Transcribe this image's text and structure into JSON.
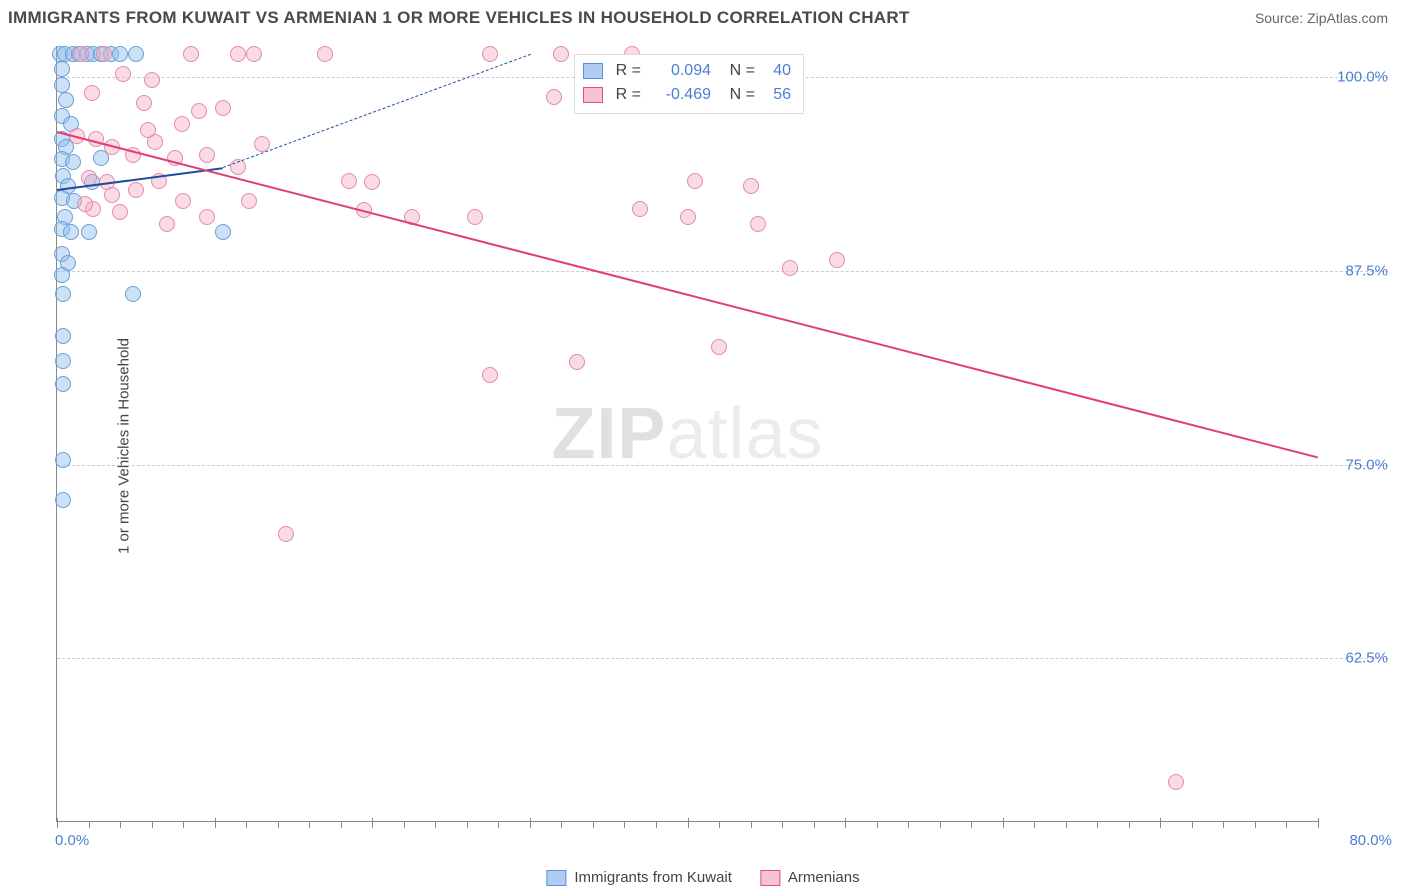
{
  "header": {
    "title": "IMMIGRANTS FROM KUWAIT VS ARMENIAN 1 OR MORE VEHICLES IN HOUSEHOLD CORRELATION CHART",
    "source": "Source: ZipAtlas.com"
  },
  "chart": {
    "type": "scatter",
    "ylabel": "1 or more Vehicles in Household",
    "watermark": {
      "left": "ZIP",
      "right": "atlas"
    },
    "background_color": "#ffffff",
    "grid_color": "#cccccc",
    "axis_color": "#888888",
    "tick_label_color": "#4a7fd4",
    "xlim": [
      0,
      80
    ],
    "ylim": [
      52,
      102
    ],
    "xticks_major": [
      0,
      10,
      20,
      30,
      40,
      50,
      60,
      70,
      80
    ],
    "xticks_minor_step": 2,
    "xlabel_min": "0.0%",
    "xlabel_max": "80.0%",
    "yticks": [
      {
        "v": 62.5,
        "label": "62.5%"
      },
      {
        "v": 75.0,
        "label": "75.0%"
      },
      {
        "v": 87.5,
        "label": "87.5%"
      },
      {
        "v": 100.0,
        "label": "100.0%"
      }
    ],
    "corr_box": {
      "pos_left_pct": 41,
      "pos_top_pct": 1,
      "rows": [
        {
          "fill": "#aecdf0",
          "stroke": "#5a92d4",
          "r": "0.094",
          "n": "40"
        },
        {
          "fill": "#f5c3d2",
          "stroke": "#e04f81",
          "r": "-0.469",
          "n": "56"
        }
      ],
      "rlabel": "R =",
      "nlabel": "N ="
    },
    "bottom_legend": [
      {
        "fill": "#aecdf0",
        "stroke": "#5a92d4",
        "label": "Immigrants from Kuwait"
      },
      {
        "fill": "#f5c3d2",
        "stroke": "#e04f81",
        "label": "Armenians"
      }
    ],
    "series": [
      {
        "name": "kuwait",
        "marker_fill": "rgba(142,189,234,0.45)",
        "marker_stroke": "#6aa0d8",
        "marker_size": 16,
        "trend": {
          "color": "#1d4f9c",
          "width": 2.5,
          "dash": "none",
          "x1": 0,
          "y1": 92.8,
          "x2": 10.5,
          "y2": 94.2
        },
        "trend_ext": {
          "color": "#1d4f9c",
          "width": 1.3,
          "dash": "6 5",
          "x1": 10.5,
          "y1": 94.2,
          "x2": 30,
          "y2": 101.5
        },
        "points": [
          [
            0.2,
            101.5
          ],
          [
            0.5,
            101.5
          ],
          [
            1.0,
            101.5
          ],
          [
            1.4,
            101.5
          ],
          [
            1.9,
            101.5
          ],
          [
            2.3,
            101.5
          ],
          [
            2.8,
            101.5
          ],
          [
            3.4,
            101.5
          ],
          [
            4.0,
            101.5
          ],
          [
            5.0,
            101.5
          ],
          [
            0.3,
            99.5
          ],
          [
            0.6,
            98.5
          ],
          [
            0.3,
            97.5
          ],
          [
            0.9,
            97.0
          ],
          [
            0.3,
            96.0
          ],
          [
            0.6,
            95.5
          ],
          [
            0.3,
            94.7
          ],
          [
            1.0,
            94.5
          ],
          [
            0.4,
            93.6
          ],
          [
            0.7,
            93.0
          ],
          [
            0.3,
            92.2
          ],
          [
            1.1,
            92.0
          ],
          [
            2.2,
            93.2
          ],
          [
            2.8,
            94.8
          ],
          [
            0.5,
            91.0
          ],
          [
            0.3,
            90.2
          ],
          [
            0.9,
            90.0
          ],
          [
            2.0,
            90.0
          ],
          [
            10.5,
            90.0
          ],
          [
            0.3,
            88.6
          ],
          [
            0.7,
            88.0
          ],
          [
            0.3,
            87.2
          ],
          [
            0.4,
            86.0
          ],
          [
            4.8,
            86.0
          ],
          [
            0.4,
            83.3
          ],
          [
            0.4,
            81.7
          ],
          [
            0.4,
            80.2
          ],
          [
            0.4,
            75.3
          ],
          [
            0.4,
            72.7
          ],
          [
            0.3,
            100.5
          ]
        ]
      },
      {
        "name": "armenian",
        "marker_fill": "rgba(243,172,196,0.45)",
        "marker_stroke": "#e58bad",
        "marker_size": 16,
        "trend": {
          "color": "#e23d78",
          "width": 2.5,
          "dash": "none",
          "x1": 0,
          "y1": 96.5,
          "x2": 80,
          "y2": 75.5
        },
        "points": [
          [
            1.5,
            101.5
          ],
          [
            3.0,
            101.5
          ],
          [
            8.5,
            101.5
          ],
          [
            11.5,
            101.5
          ],
          [
            12.5,
            101.5
          ],
          [
            17.0,
            101.5
          ],
          [
            27.5,
            101.5
          ],
          [
            32.0,
            101.5
          ],
          [
            36.5,
            101.5
          ],
          [
            2.2,
            99.0
          ],
          [
            4.2,
            100.2
          ],
          [
            6.0,
            99.8
          ],
          [
            5.5,
            98.3
          ],
          [
            9.0,
            97.8
          ],
          [
            10.5,
            98.0
          ],
          [
            31.5,
            98.7
          ],
          [
            1.3,
            96.2
          ],
          [
            2.5,
            96.0
          ],
          [
            3.5,
            95.5
          ],
          [
            4.8,
            95.0
          ],
          [
            6.2,
            95.8
          ],
          [
            7.5,
            94.8
          ],
          [
            9.5,
            95.0
          ],
          [
            11.5,
            94.2
          ],
          [
            13.0,
            95.7
          ],
          [
            2.0,
            93.5
          ],
          [
            3.2,
            93.2
          ],
          [
            5.0,
            92.7
          ],
          [
            6.5,
            93.3
          ],
          [
            8.0,
            92.0
          ],
          [
            18.5,
            93.3
          ],
          [
            20.0,
            93.2
          ],
          [
            40.5,
            93.3
          ],
          [
            44.0,
            93.0
          ],
          [
            2.3,
            91.5
          ],
          [
            4.0,
            91.3
          ],
          [
            7.0,
            90.5
          ],
          [
            9.5,
            91.0
          ],
          [
            19.5,
            91.4
          ],
          [
            22.5,
            91.0
          ],
          [
            26.5,
            91.0
          ],
          [
            37.0,
            91.5
          ],
          [
            40.0,
            91.0
          ],
          [
            44.5,
            90.5
          ],
          [
            46.5,
            87.7
          ],
          [
            49.5,
            88.2
          ],
          [
            42.0,
            82.6
          ],
          [
            27.5,
            80.8
          ],
          [
            33.0,
            81.6
          ],
          [
            14.5,
            70.5
          ],
          [
            1.8,
            91.8
          ],
          [
            3.5,
            92.4
          ],
          [
            5.8,
            96.6
          ],
          [
            7.9,
            97.0
          ],
          [
            12.2,
            92.0
          ],
          [
            71.0,
            54.5
          ]
        ]
      }
    ]
  }
}
